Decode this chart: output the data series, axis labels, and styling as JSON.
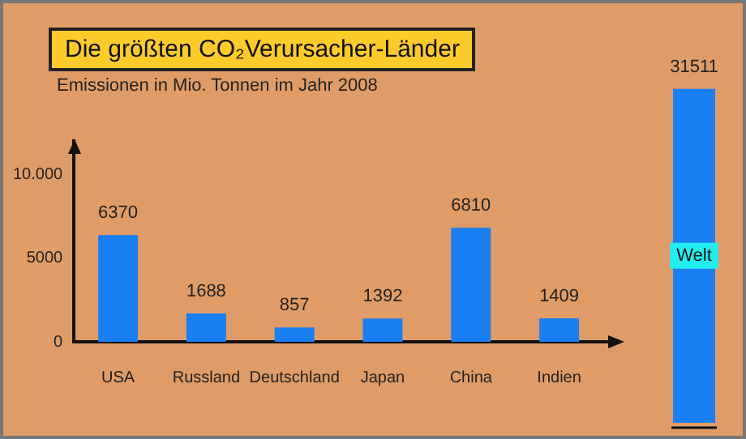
{
  "chart_data": [
    {
      "type": "bar",
      "title": "Die größten CO₂Verursacher-Länder",
      "subtitle": "Emissionen in Mio. Tonnen im Jahr 2008",
      "categories": [
        "USA",
        "Russland",
        "Deutschland",
        "Japan",
        "China",
        "Indien"
      ],
      "values": [
        6370,
        1688,
        857,
        1392,
        6810,
        1409
      ],
      "color": "#1a7ff2",
      "ylim": [
        0,
        12000
      ],
      "yticks": [
        0,
        5000,
        {
          "value": 10000,
          "label": "10.000"
        }
      ],
      "data_labels": true
    },
    {
      "type": "bar",
      "categories": [
        "Welt"
      ],
      "values": [
        31511
      ],
      "color": "#1a7ff2",
      "data_labels": true
    }
  ]
}
